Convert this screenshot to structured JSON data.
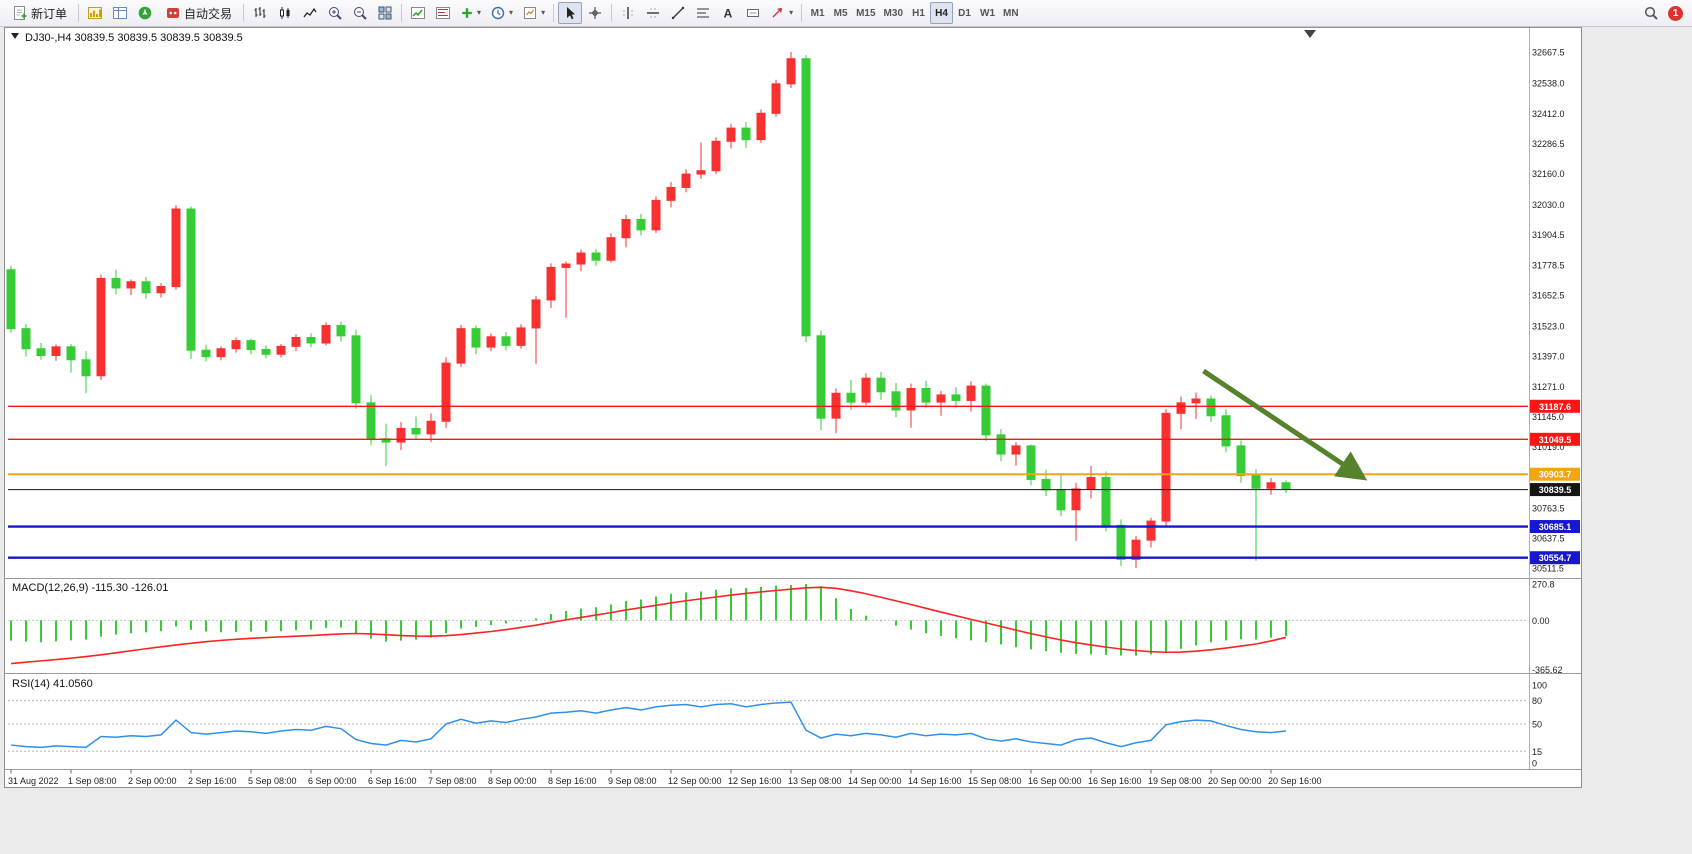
{
  "toolbar": {
    "new_order": "新订单",
    "auto_trading": "自动交易",
    "timeframes": [
      "M1",
      "M5",
      "M15",
      "M30",
      "H1",
      "H4",
      "D1",
      "W1",
      "MN"
    ],
    "active_timeframe": "H4",
    "notification_count": "1"
  },
  "icons": {
    "text_tool": "A"
  },
  "chart_data": {
    "type": "candlestick",
    "symbol": "DJ30-",
    "period": "H4",
    "ohlc_label": "DJ30-,H4  30839.5 30839.5 30839.5 30839.5",
    "current_ohlc": {
      "open": 30839.5,
      "high": 30839.5,
      "low": 30839.5,
      "close": 30839.5
    },
    "price_axis": {
      "min": 30470,
      "max": 32760,
      "labels": [
        "32667.5",
        "32538.0",
        "32412.0",
        "32286.5",
        "32160.0",
        "32030.0",
        "31904.5",
        "31778.5",
        "31652.5",
        "31523.0",
        "31397.0",
        "31271.0",
        "31145.0",
        "31019.0",
        "30763.5",
        "30637.5",
        "30511.5"
      ]
    },
    "bar_spacing": 15,
    "bars_per_label": 4,
    "time_labels": [
      "31 Aug 2022",
      "1 Sep 08:00",
      "2 Sep 00:00",
      "2 Sep 16:00",
      "5 Sep 08:00",
      "6 Sep 00:00",
      "6 Sep 16:00",
      "7 Sep 08:00",
      "8 Sep 00:00",
      "8 Sep 16:00",
      "9 Sep 08:00",
      "12 Sep 00:00",
      "12 Sep 16:00",
      "13 Sep 08:00",
      "14 Sep 00:00",
      "14 Sep 16:00",
      "15 Sep 08:00",
      "16 Sep 00:00",
      "16 Sep 16:00",
      "19 Sep 08:00",
      "20 Sep 00:00",
      "20 Sep 16:00"
    ],
    "candles": [
      [
        31758,
        31775,
        31495,
        31512
      ],
      [
        31512,
        31532,
        31395,
        31428
      ],
      [
        31428,
        31452,
        31382,
        31400
      ],
      [
        31400,
        31445,
        31378,
        31436
      ],
      [
        31436,
        31448,
        31328,
        31382
      ],
      [
        31382,
        31418,
        31242,
        31315
      ],
      [
        31315,
        31738,
        31298,
        31722
      ],
      [
        31722,
        31758,
        31655,
        31682
      ],
      [
        31682,
        31718,
        31652,
        31708
      ],
      [
        31708,
        31728,
        31638,
        31662
      ],
      [
        31662,
        31702,
        31642,
        31688
      ],
      [
        31688,
        32028,
        31675,
        32012
      ],
      [
        32012,
        32022,
        31385,
        31422
      ],
      [
        31422,
        31445,
        31375,
        31395
      ],
      [
        31395,
        31438,
        31380,
        31428
      ],
      [
        31428,
        31475,
        31412,
        31462
      ],
      [
        31462,
        31470,
        31405,
        31425
      ],
      [
        31425,
        31442,
        31388,
        31405
      ],
      [
        31405,
        31448,
        31392,
        31438
      ],
      [
        31438,
        31488,
        31418,
        31475
      ],
      [
        31475,
        31492,
        31435,
        31452
      ],
      [
        31452,
        31538,
        31442,
        31525
      ],
      [
        31525,
        31542,
        31458,
        31482
      ],
      [
        31482,
        31508,
        31178,
        31202
      ],
      [
        31202,
        31235,
        31025,
        31052
      ],
      [
        31052,
        31115,
        30938,
        31038
      ],
      [
        31038,
        31122,
        31005,
        31095
      ],
      [
        31095,
        31145,
        31048,
        31072
      ],
      [
        31072,
        31158,
        31038,
        31125
      ],
      [
        31125,
        31392,
        31098,
        31368
      ],
      [
        31368,
        31528,
        31352,
        31512
      ],
      [
        31512,
        31525,
        31405,
        31435
      ],
      [
        31435,
        31492,
        31418,
        31478
      ],
      [
        31478,
        31498,
        31420,
        31442
      ],
      [
        31442,
        31530,
        31428,
        31515
      ],
      [
        31515,
        31648,
        31365,
        31632
      ],
      [
        31632,
        31785,
        31598,
        31768
      ],
      [
        31768,
        31792,
        31558,
        31782
      ],
      [
        31782,
        31842,
        31752,
        31828
      ],
      [
        31828,
        31845,
        31775,
        31798
      ],
      [
        31798,
        31910,
        31788,
        31892
      ],
      [
        31892,
        31988,
        31852,
        31968
      ],
      [
        31968,
        31992,
        31902,
        31925
      ],
      [
        31925,
        32065,
        31912,
        32048
      ],
      [
        32048,
        32125,
        32018,
        32102
      ],
      [
        32102,
        32178,
        32082,
        32158
      ],
      [
        32158,
        32290,
        32138,
        32172
      ],
      [
        32172,
        32312,
        32158,
        32295
      ],
      [
        32295,
        32368,
        32265,
        32350
      ],
      [
        32350,
        32375,
        32268,
        32302
      ],
      [
        32302,
        32428,
        32288,
        32412
      ],
      [
        32412,
        32552,
        32398,
        32535
      ],
      [
        32535,
        32668,
        32518,
        32640
      ],
      [
        32640,
        32656,
        31455,
        31482
      ],
      [
        31482,
        31505,
        31088,
        31138
      ],
      [
        31138,
        31262,
        31075,
        31242
      ],
      [
        31242,
        31298,
        31172,
        31205
      ],
      [
        31205,
        31325,
        31192,
        31305
      ],
      [
        31305,
        31332,
        31215,
        31248
      ],
      [
        31248,
        31285,
        31142,
        31172
      ],
      [
        31172,
        31282,
        31098,
        31262
      ],
      [
        31262,
        31295,
        31182,
        31205
      ],
      [
        31205,
        31252,
        31148,
        31235
      ],
      [
        31235,
        31268,
        31182,
        31212
      ],
      [
        31212,
        31292,
        31165,
        31272
      ],
      [
        31272,
        31282,
        31042,
        31068
      ],
      [
        31068,
        31092,
        30958,
        30988
      ],
      [
        30988,
        31038,
        30940,
        31022
      ],
      [
        31022,
        31028,
        30858,
        30882
      ],
      [
        30882,
        30922,
        30812,
        30838
      ],
      [
        30838,
        30902,
        30728,
        30755
      ],
      [
        30755,
        30868,
        30625,
        30842
      ],
      [
        30842,
        30938,
        30802,
        30890
      ],
      [
        30890,
        30915,
        30665,
        30690
      ],
      [
        30690,
        30715,
        30520,
        30548
      ],
      [
        30548,
        30645,
        30512,
        30628
      ],
      [
        30628,
        30722,
        30598,
        30708
      ],
      [
        30708,
        31175,
        30685,
        31158
      ],
      [
        31158,
        31228,
        31092,
        31202
      ],
      [
        31202,
        31245,
        31135,
        31218
      ],
      [
        31218,
        31232,
        31122,
        31148
      ],
      [
        31148,
        31175,
        30995,
        31022
      ],
      [
        31022,
        31045,
        30868,
        30898
      ],
      [
        30898,
        30925,
        30542,
        30845
      ],
      [
        30845,
        30888,
        30818,
        30868
      ],
      [
        30868,
        30878,
        30825,
        30840
      ]
    ],
    "hlines": [
      {
        "price": 31187.6,
        "label": "31187.6",
        "color": "#fe1414",
        "width": 1.4
      },
      {
        "price": 31049.5,
        "label": "31049.5",
        "color": "#fe1414",
        "width": 1.4
      },
      {
        "price": 30903.7,
        "label": "30903.7",
        "color": "#f2a50f",
        "width": 2
      },
      {
        "price": 30685.1,
        "label": "30685.1",
        "color": "#1717cf",
        "width": 2.4
      },
      {
        "price": 30554.7,
        "label": "30554.7",
        "color": "#1717cf",
        "width": 2.4
      }
    ],
    "current_price": {
      "price": 30839.5,
      "label": "30839.5",
      "color": "#151515"
    },
    "annotation_arrow": {
      "from_bar": 79.5,
      "from_price": 31335,
      "to_bar": 90,
      "to_price": 30895,
      "color": "#55822b"
    },
    "macd": {
      "label": "MACD(12,26,9) -115.30 -126.01",
      "params": "12,26,9",
      "main_value": -115.3,
      "signal_value": -126.01,
      "range": [
        -390,
        300
      ],
      "axis_labels": [
        {
          "text": "270.8",
          "value": 270.8
        },
        {
          "text": "0.00",
          "value": 0
        },
        {
          "text": "-365.62",
          "value": -365.62
        }
      ],
      "hist": [
        -150,
        -158,
        -162,
        -155,
        -148,
        -142,
        -120,
        -105,
        -95,
        -88,
        -80,
        -45,
        -70,
        -82,
        -88,
        -85,
        -82,
        -84,
        -80,
        -72,
        -68,
        -55,
        -52,
        -95,
        -135,
        -158,
        -150,
        -142,
        -128,
        -95,
        -60,
        -48,
        -35,
        -22,
        -8,
        15,
        48,
        70,
        88,
        98,
        118,
        145,
        155,
        178,
        198,
        208,
        215,
        228,
        238,
        240,
        248,
        258,
        262,
        270,
        255,
        165,
        85,
        35,
        -5,
        -38,
        -68,
        -95,
        -115,
        -132,
        -148,
        -162,
        -178,
        -198,
        -215,
        -228,
        -240,
        -248,
        -252,
        -255,
        -260,
        -262,
        -252,
        -235,
        -210,
        -185,
        -162,
        -148,
        -140,
        -142,
        -128,
        -115.3
      ],
      "signal": [
        -320,
        -310,
        -300,
        -290,
        -280,
        -268,
        -255,
        -240,
        -225,
        -210,
        -196,
        -182,
        -170,
        -158,
        -148,
        -140,
        -133,
        -127,
        -122,
        -117,
        -112,
        -106,
        -100,
        -97,
        -100,
        -106,
        -112,
        -116,
        -117,
        -113,
        -105,
        -94,
        -82,
        -68,
        -52,
        -35,
        -15,
        4,
        22,
        40,
        58,
        78,
        95,
        112,
        130,
        146,
        160,
        174,
        188,
        200,
        212,
        222,
        232,
        242,
        246,
        238,
        220,
        198,
        172,
        145,
        118,
        90,
        62,
        35,
        8,
        -18,
        -45,
        -72,
        -98,
        -122,
        -145,
        -165,
        -182,
        -198,
        -212,
        -224,
        -232,
        -236,
        -235,
        -228,
        -218,
        -205,
        -190,
        -175,
        -152,
        -126.01
      ]
    },
    "rsi": {
      "label": "RSI(14) 41.0560",
      "period": 14,
      "current": 41.056,
      "levels": [
        80,
        50,
        15
      ],
      "axis_labels": [
        {
          "text": "100",
          "value": 100
        },
        {
          "text": "80",
          "value": 80
        },
        {
          "text": "50",
          "value": 50
        },
        {
          "text": "15",
          "value": 15
        },
        {
          "text": "0",
          "value": 0
        }
      ],
      "values": [
        23,
        21,
        20,
        22,
        21,
        20,
        34,
        33,
        35,
        34,
        36,
        55,
        39,
        37,
        39,
        41,
        40,
        38,
        41,
        43,
        42,
        47,
        44,
        30,
        25,
        23,
        29,
        27,
        31,
        50,
        56,
        51,
        54,
        52,
        56,
        59,
        64,
        65,
        67,
        64,
        68,
        71,
        68,
        72,
        74,
        75,
        72,
        75,
        76,
        72,
        75,
        77,
        78,
        42,
        32,
        37,
        35,
        38,
        36,
        33,
        38,
        35,
        37,
        36,
        38,
        31,
        28,
        31,
        27,
        25,
        23,
        30,
        32,
        26,
        21,
        26,
        29,
        49,
        53,
        55,
        54,
        48,
        43,
        40,
        39,
        41.06
      ]
    },
    "colors": {
      "up": "#f83030",
      "down": "#35cc35",
      "macd_hist": "#35cc35",
      "macd_signal": "#ff2222",
      "rsi_line": "#2f8fe8",
      "arrow": "#55822b"
    }
  }
}
